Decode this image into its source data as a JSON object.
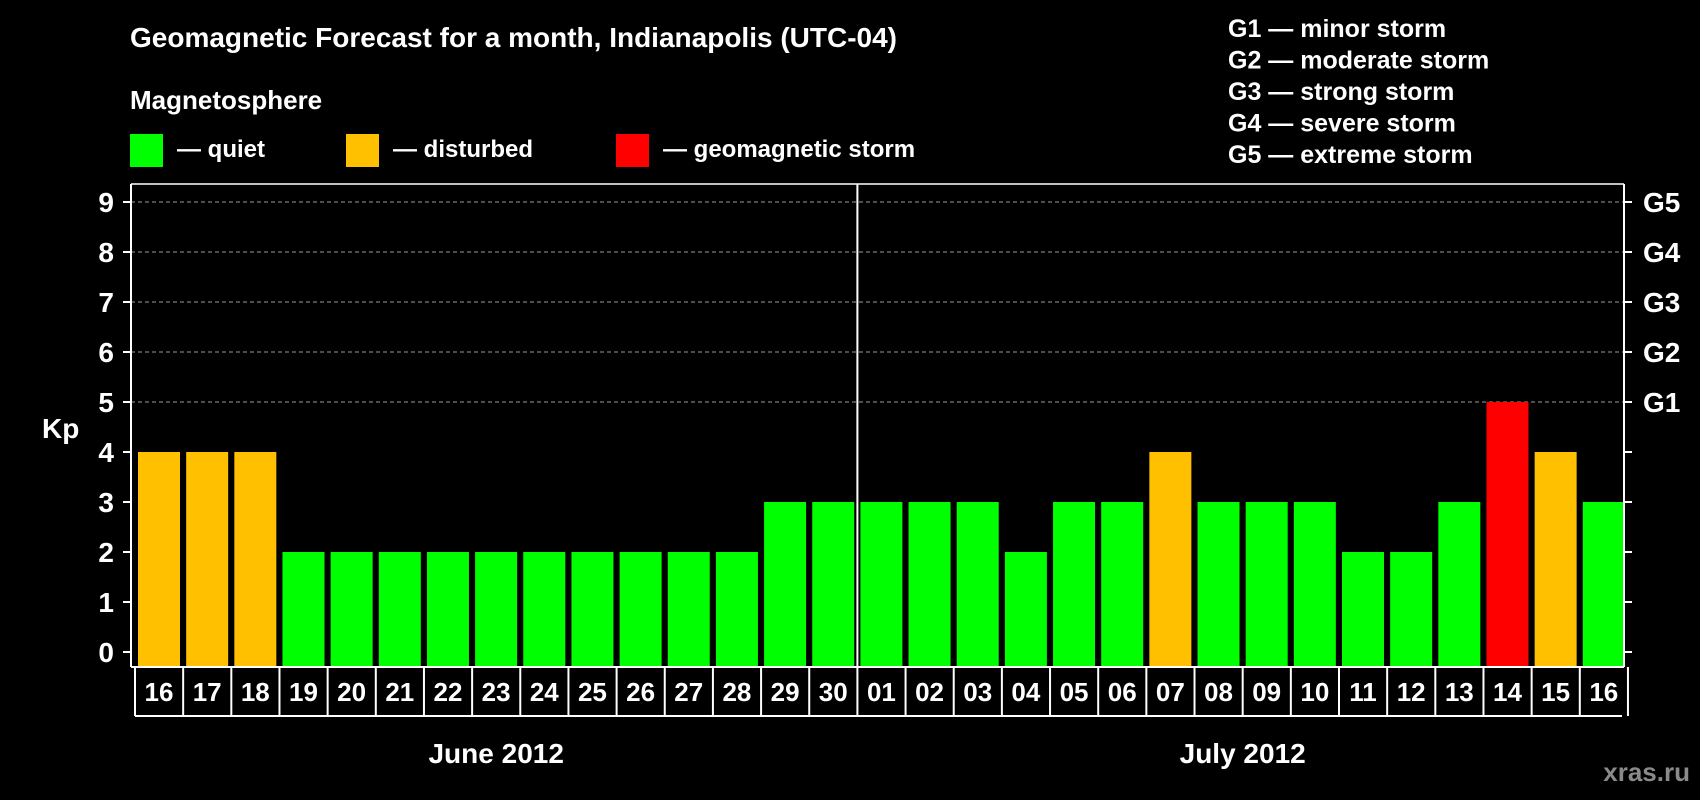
{
  "chart_data": {
    "type": "bar",
    "title": "Geomagnetic Forecast for a month, Indianapolis (UTC-04)",
    "ylabel": "Kp",
    "ylim": [
      0,
      9
    ],
    "yticks": [
      "0",
      "1",
      "2",
      "3",
      "4",
      "5",
      "6",
      "7",
      "8",
      "9"
    ],
    "right_ticks": [
      {
        "kp": 5,
        "label": "G1"
      },
      {
        "kp": 6,
        "label": "G2"
      },
      {
        "kp": 7,
        "label": "G3"
      },
      {
        "kp": 8,
        "label": "G4"
      },
      {
        "kp": 9,
        "label": "G5"
      }
    ],
    "categories": [
      "16",
      "17",
      "18",
      "19",
      "20",
      "21",
      "22",
      "23",
      "24",
      "25",
      "26",
      "27",
      "28",
      "29",
      "30",
      "01",
      "02",
      "03",
      "04",
      "05",
      "06",
      "07",
      "08",
      "09",
      "10",
      "11",
      "12",
      "13",
      "14",
      "15",
      "16"
    ],
    "values": [
      4,
      4,
      4,
      2,
      2,
      2,
      2,
      2,
      2,
      2,
      2,
      2,
      2,
      3,
      3,
      3,
      3,
      3,
      2,
      3,
      3,
      4,
      3,
      3,
      3,
      2,
      2,
      3,
      5,
      4,
      3
    ],
    "months": [
      {
        "label": "June 2012",
        "start": 0,
        "count": 15
      },
      {
        "label": "July 2012",
        "start": 15,
        "count": 16
      }
    ],
    "levels": {
      "quiet_max": 3,
      "disturbed_max": 4
    },
    "colors": {
      "quiet": "#00ff00",
      "disturbed": "#ffc000",
      "storm": "#ff0000"
    },
    "legend_title": "Magnetosphere",
    "legend": [
      {
        "key": "quiet",
        "label": "— quiet"
      },
      {
        "key": "disturbed",
        "label": "— disturbed"
      },
      {
        "key": "storm",
        "label": "— geomagnetic storm"
      }
    ],
    "storm_scale": [
      "G1 — minor storm",
      "G2 — moderate storm",
      "G3 — strong storm",
      "G4 — severe storm",
      "G5 — extreme storm"
    ],
    "watermark": "xras.ru"
  }
}
